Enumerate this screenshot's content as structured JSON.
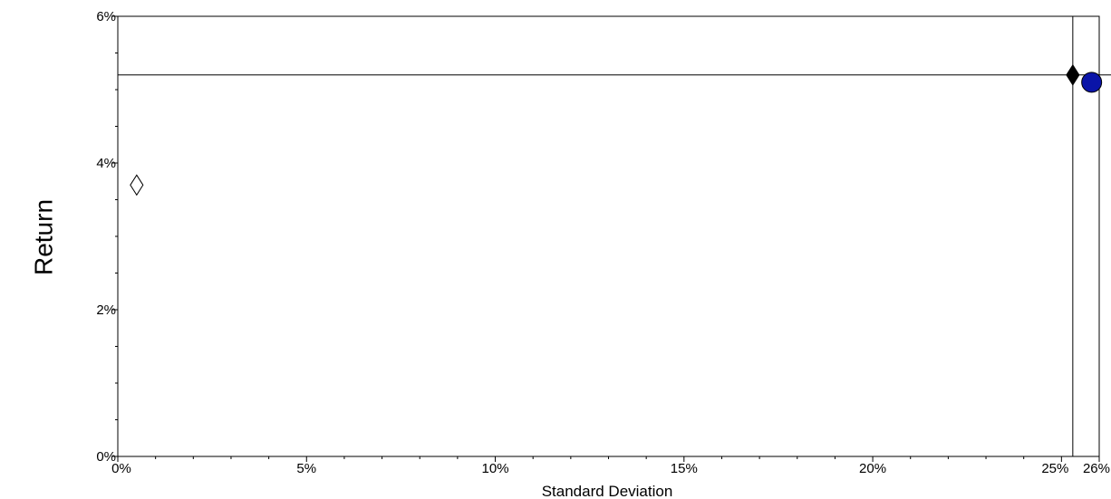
{
  "chart_data": {
    "type": "scatter",
    "title": "",
    "xlabel": "Standard Deviation",
    "ylabel": "Return",
    "xlim": [
      0,
      26
    ],
    "ylim": [
      0,
      6
    ],
    "x_ticks": [
      {
        "value": 0,
        "label": "0%"
      },
      {
        "value": 5,
        "label": "5%"
      },
      {
        "value": 10,
        "label": "10%"
      },
      {
        "value": 15,
        "label": "15%"
      },
      {
        "value": 20,
        "label": "20%"
      },
      {
        "value": 25,
        "label": "25%"
      },
      {
        "value": 26,
        "label": "26%"
      }
    ],
    "y_ticks": [
      {
        "value": 0,
        "label": "0%"
      },
      {
        "value": 2,
        "label": "2%"
      },
      {
        "value": 4,
        "label": "4%"
      },
      {
        "value": 6,
        "label": "6%"
      }
    ],
    "x_minor_step": 1,
    "y_minor_step": 0.5,
    "grid": false,
    "reference_lines": {
      "horizontal_y": 5.2,
      "vertical_x": 25.3
    },
    "points": [
      {
        "x": 0.5,
        "y": 3.7,
        "marker": "diamond-open",
        "color": "#ffffff"
      },
      {
        "x": 25.3,
        "y": 5.2,
        "marker": "diamond-filled",
        "color": "#000000"
      },
      {
        "x": 25.8,
        "y": 5.1,
        "marker": "circle",
        "color": "#0a14a8"
      }
    ]
  }
}
